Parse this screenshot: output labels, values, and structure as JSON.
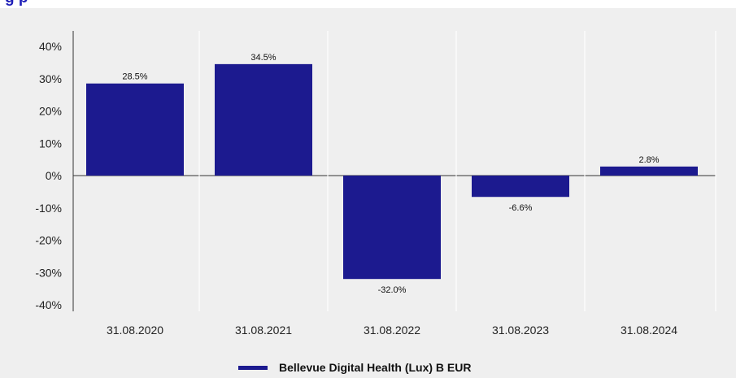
{
  "header": {
    "title_fragment": "g      p"
  },
  "colors": {
    "bar": "#1c1a8f",
    "panel": "#efefef",
    "axis": "#333333"
  },
  "chart_data": {
    "type": "bar",
    "categories": [
      "31.08.2020",
      "31.08.2021",
      "31.08.2022",
      "31.08.2023",
      "31.08.2024"
    ],
    "series": [
      {
        "name": "Bellevue Digital Health (Lux) B EUR",
        "values": [
          28.5,
          34.5,
          -32.0,
          -6.6,
          2.8
        ],
        "data_labels": [
          "28.5%",
          "34.5%",
          "-32.0%",
          "-6.6%",
          "2.8%"
        ]
      }
    ],
    "y_ticks": [
      40,
      30,
      20,
      10,
      0,
      -10,
      -20,
      -30,
      -40
    ],
    "y_tick_labels": [
      "40%",
      "30%",
      "20%",
      "10%",
      "0%",
      "-10%",
      "-20%",
      "-30%",
      "-40%"
    ],
    "ylim": [
      -40,
      40
    ],
    "grid": false,
    "legend": "bottom-center"
  }
}
